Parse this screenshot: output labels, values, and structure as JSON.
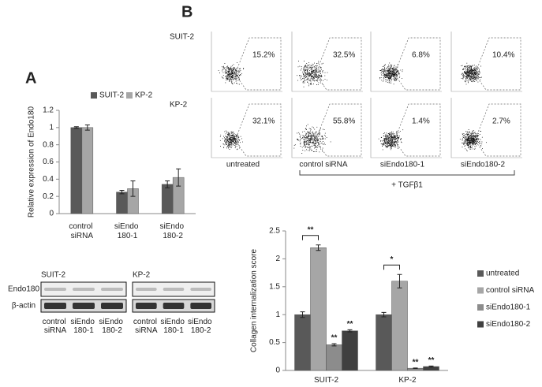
{
  "panel_labels": [
    "A",
    "B"
  ],
  "flow": {
    "rows": [
      {
        "label": "SUIT-2",
        "percents": [
          "15.2%",
          "32.5%",
          "6.8%",
          "10.4%"
        ]
      },
      {
        "label": "KP-2",
        "percents": [
          "32.1%",
          "55.8%",
          "1.4%",
          "2.7%"
        ]
      }
    ],
    "columns": [
      "untreated",
      "control siRNA",
      "siEndo180-1",
      "siEndo180-2"
    ],
    "group_label": "+ TGFβ1"
  },
  "blot": {
    "rows": [
      "Endo180",
      "β-actin"
    ],
    "groups": [
      {
        "label": "SUIT-2",
        "lanes": [
          "control siRNA",
          "siEndo 180-1",
          "siEndo 180-2"
        ]
      },
      {
        "label": "KP-2",
        "lanes": [
          "control siRNA",
          "siEndo 180-1",
          "siEndo 180-2"
        ]
      }
    ]
  },
  "chart_data": [
    {
      "type": "bar",
      "y_label": "Relative expression of Endo180",
      "categories": [
        "control siRNA",
        "siEndo 180-1",
        "siEndo 180-2"
      ],
      "series": [
        {
          "name": "SUIT-2",
          "color": "#595959",
          "values": [
            1,
            0.25,
            0.34
          ],
          "errors": [
            0.01,
            0.02,
            0.04
          ]
        },
        {
          "name": "KP-2",
          "color": "#a6a6a6",
          "values": [
            1,
            0.29,
            0.42
          ],
          "errors": [
            0.03,
            0.09,
            0.1
          ]
        }
      ],
      "ylim": [
        0,
        1.2
      ],
      "yticks": [
        0,
        0.2,
        0.4,
        0.6,
        0.8,
        1,
        1.2
      ],
      "legend": "top"
    },
    {
      "type": "bar",
      "y_label": "Collagen internalization score",
      "categories": [
        "SUIT-2",
        "KP-2"
      ],
      "series": [
        {
          "name": "untreated",
          "color": "#595959",
          "values": [
            1,
            1
          ],
          "errors": [
            0.05,
            0.04
          ]
        },
        {
          "name": "control siRNA",
          "color": "#a6a6a6",
          "values": [
            2.2,
            1.6
          ],
          "errors": [
            0.05,
            0.12
          ]
        },
        {
          "name": "siEndo180-1",
          "color": "#8c8c8c",
          "values": [
            0.46,
            0.04
          ],
          "errors": [
            0.02,
            0.005
          ],
          "stars": [
            "**",
            "**"
          ]
        },
        {
          "name": "siEndo180-2",
          "color": "#404040",
          "values": [
            0.71,
            0.07
          ],
          "errors": [
            0.02,
            0.01
          ],
          "stars": [
            "**",
            "**"
          ]
        }
      ],
      "brackets": [
        "**",
        "*"
      ],
      "ylim": [
        0,
        2.5
      ],
      "yticks": [
        0,
        0.5,
        1,
        1.5,
        2,
        2.5
      ],
      "legend": "right"
    }
  ]
}
